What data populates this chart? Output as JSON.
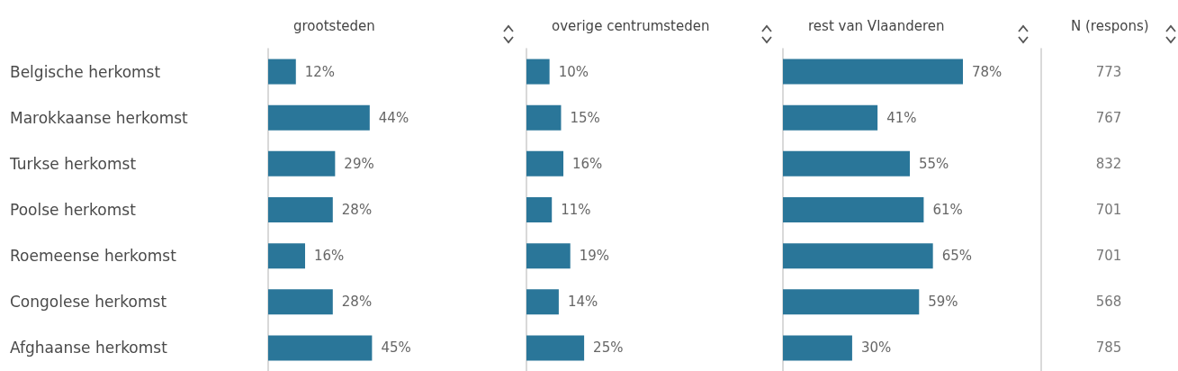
{
  "chart_data": [
    {
      "type": "bar",
      "orientation": "horizontal",
      "title": "grootsteden",
      "categories": [
        "Belgische herkomst",
        "Marokkaanse herkomst",
        "Turkse herkomst",
        "Poolse herkomst",
        "Roemeense herkomst",
        "Congolese herkomst",
        "Afghaanse herkomst"
      ],
      "values": [
        12,
        44,
        29,
        28,
        16,
        28,
        45
      ],
      "value_labels": [
        "12%",
        "44%",
        "29%",
        "28%",
        "16%",
        "28%",
        "45%"
      ],
      "color": "#2a7699",
      "tick_labels": "y"
    },
    {
      "type": "bar",
      "orientation": "horizontal",
      "title": "overige centrumsteden",
      "categories": [
        null,
        null,
        null,
        null,
        null,
        null,
        null
      ],
      "values": [
        10,
        15,
        16,
        11,
        19,
        14,
        25
      ],
      "value_labels": [
        "10%",
        "15%",
        "16%",
        "11%",
        "19%",
        "14%",
        "25%"
      ],
      "color": "#2a7699",
      "tick_labels": false
    },
    {
      "type": "bar",
      "orientation": "horizontal",
      "title": "rest van Vlaanderen",
      "categories": [
        null,
        null,
        null,
        null,
        null,
        null,
        null
      ],
      "values": [
        78,
        41,
        55,
        61,
        65,
        59,
        30
      ],
      "value_labels": [
        "78%",
        "41%",
        "55%",
        "61%",
        "65%",
        "59%",
        "30%"
      ],
      "color": "#2a7699",
      "tick_labels": false
    },
    {
      "type": "other",
      "title": "N (respons)",
      "values": [
        773,
        767,
        832,
        701,
        701,
        568,
        785
      ],
      "data_labels": true
    }
  ]
}
